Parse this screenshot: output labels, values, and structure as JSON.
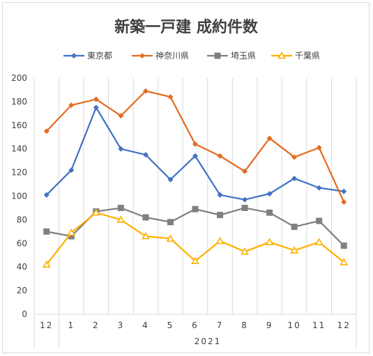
{
  "chart_data": {
    "type": "line",
    "title": "新築一戸建 成約件数",
    "categories": [
      "12",
      "1",
      "2",
      "3",
      "4",
      "5",
      "6",
      "7",
      "8",
      "9",
      "10",
      "11",
      "12"
    ],
    "group_label": "2021",
    "ylim": [
      0,
      200
    ],
    "yticks": [
      0,
      20,
      40,
      60,
      80,
      100,
      120,
      140,
      160,
      180,
      200
    ],
    "grid": "vertical",
    "legend_position": "top",
    "series": [
      {
        "name": "東京都",
        "color": "#4472c4",
        "marker": "diamond",
        "values": [
          101,
          122,
          175,
          140,
          135,
          114,
          134,
          101,
          97,
          102,
          115,
          107,
          104
        ]
      },
      {
        "name": "神奈川県",
        "color": "#e46c22",
        "marker": "diamond",
        "values": [
          155,
          177,
          182,
          168,
          189,
          184,
          144,
          134,
          121,
          149,
          133,
          141,
          95
        ]
      },
      {
        "name": "埼玉県",
        "color": "#808080",
        "marker": "square",
        "values": [
          70,
          66,
          87,
          90,
          82,
          78,
          89,
          84,
          90,
          86,
          74,
          79,
          58
        ]
      },
      {
        "name": "千葉県",
        "color": "#ffb000",
        "marker": "triangle",
        "values": [
          42,
          69,
          86,
          80,
          66,
          64,
          45,
          62,
          53,
          61,
          54,
          61,
          44
        ]
      }
    ]
  }
}
